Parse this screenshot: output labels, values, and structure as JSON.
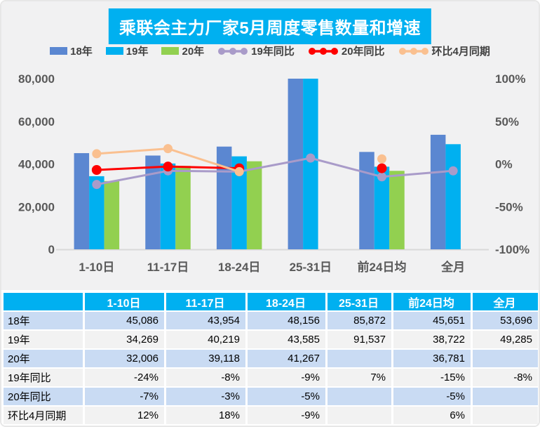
{
  "title": "乘联会主力厂家5月周度零售数量和增速",
  "colors": {
    "title_bg": "#00b0f0",
    "chart_bg": "#f1f1f2",
    "axis_text": "#595959",
    "axis_line": "#d9d9d9",
    "bar_18": "#5b87d1",
    "bar_19": "#00b0f0",
    "bar_20": "#92d050",
    "line_yoy19": "#a99bc9",
    "line_yoy20": "#fe0000",
    "line_mom": "#fac090",
    "table_header_bg": "#00b0f0",
    "row_blue": "#c9dbf3",
    "row_gray": "#f2f2f2"
  },
  "legend": [
    {
      "label": "18年",
      "type": "bar",
      "color": "#5b87d1"
    },
    {
      "label": "19年",
      "type": "bar",
      "color": "#00b0f0"
    },
    {
      "label": "20年",
      "type": "bar",
      "color": "#92d050"
    },
    {
      "label": "19年同比",
      "type": "line",
      "color": "#a99bc9"
    },
    {
      "label": "20年同比",
      "type": "line",
      "color": "#fe0000"
    },
    {
      "label": "环比4月同期",
      "type": "line",
      "color": "#fac090"
    }
  ],
  "chart_data": {
    "type": "bar",
    "title": "乘联会主力厂家5月周度零售数量和增速",
    "categories": [
      "1-10日",
      "11-17日",
      "18-24日",
      "25-31日",
      "前24日均",
      "全月"
    ],
    "bar_series": [
      {
        "name": "18年",
        "color": "#5b87d1",
        "values": [
          45086,
          43954,
          48156,
          85872,
          45651,
          53696
        ]
      },
      {
        "name": "19年",
        "color": "#00b0f0",
        "values": [
          34269,
          40219,
          43585,
          91537,
          38722,
          49285
        ]
      },
      {
        "name": "20年",
        "color": "#92d050",
        "values": [
          32006,
          39118,
          41267,
          null,
          36781,
          null
        ]
      }
    ],
    "line_series": [
      {
        "name": "19年同比",
        "color": "#a99bc9",
        "values_pct": [
          -24,
          -8,
          -9,
          7,
          -15,
          -8
        ],
        "connect_first": 6,
        "dot_r": 6.5
      },
      {
        "name": "20年同比",
        "color": "#fe0000",
        "values_pct": [
          -7,
          -3,
          -5,
          null,
          -5,
          null
        ],
        "connect_first": 3,
        "dot_r": 7
      },
      {
        "name": "环比4月同期",
        "color": "#fac090",
        "values_pct": [
          12,
          18,
          -9,
          null,
          6,
          null
        ],
        "connect_first": 3,
        "dot_r": 6.5
      }
    ],
    "left_axis": {
      "ticks": [
        "80,000",
        "60,000",
        "40,000",
        "20,000",
        "0"
      ],
      "min": 0,
      "max": 80000,
      "note": "bars above max are clipped at plot top"
    },
    "right_axis": {
      "ticks": [
        "100%",
        "50%",
        "0%",
        "-50%",
        "-100%"
      ],
      "min": -100,
      "max": 100
    },
    "grid": false,
    "legend_position": "top"
  },
  "table": {
    "headers": [
      "",
      "1-10日",
      "11-17日",
      "18-24日",
      "25-31日",
      "前24日均",
      "全月"
    ],
    "rows": [
      {
        "label": "18年",
        "bg": "blue",
        "cells": [
          "45,086",
          "43,954",
          "48,156",
          "85,872",
          "45,651",
          "53,696"
        ]
      },
      {
        "label": "19年",
        "bg": "gray",
        "cells": [
          "34,269",
          "40,219",
          "43,585",
          "91,537",
          "38,722",
          "49,285"
        ]
      },
      {
        "label": "20年",
        "bg": "blue",
        "cells": [
          "32,006",
          "39,118",
          "41,267",
          "",
          "36,781",
          ""
        ]
      },
      {
        "label": "19年同比",
        "bg": "gray",
        "cells": [
          "-24%",
          "-8%",
          "-9%",
          "7%",
          "-15%",
          "-8%"
        ]
      },
      {
        "label": "20年同比",
        "bg": "blue",
        "cells": [
          "-7%",
          "-3%",
          "-5%",
          "",
          "-5%",
          ""
        ]
      },
      {
        "label": "环比4月同期",
        "bg": "gray",
        "cells": [
          "12%",
          "18%",
          "-9%",
          "",
          "6%",
          ""
        ]
      }
    ]
  }
}
